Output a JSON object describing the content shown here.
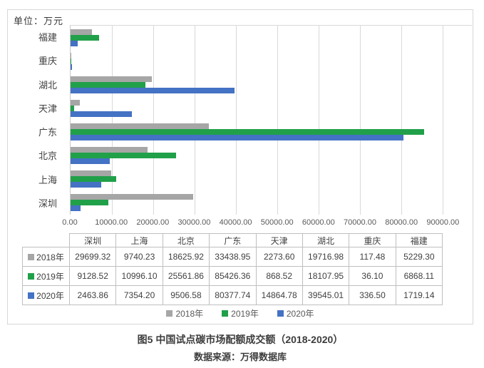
{
  "unit_label": "单位：万元",
  "chart_data": {
    "type": "bar",
    "orientation": "horizontal",
    "categories": [
      "深圳",
      "上海",
      "北京",
      "广东",
      "天津",
      "湖北",
      "重庆",
      "福建"
    ],
    "category_axis_top_to_bottom": [
      "福建",
      "重庆",
      "湖北",
      "天津",
      "广东",
      "北京",
      "上海",
      "深圳"
    ],
    "series": [
      {
        "name": "2018年",
        "color": "#A6A6A6",
        "values": [
          29699.32,
          9740.23,
          18625.92,
          33438.95,
          2273.6,
          19716.98,
          117.48,
          5229.3
        ]
      },
      {
        "name": "2019年",
        "color": "#21A04A",
        "values": [
          9128.52,
          10996.1,
          25561.86,
          85426.36,
          868.52,
          18107.95,
          36.1,
          6868.11
        ]
      },
      {
        "name": "2020年",
        "color": "#4472C4",
        "values": [
          2463.86,
          7354.2,
          9506.58,
          80377.74,
          14864.78,
          39545.01,
          336.5,
          1719.14
        ]
      }
    ],
    "xlim": [
      0,
      97000
    ],
    "xticks": [
      0,
      10000,
      20000,
      30000,
      40000,
      50000,
      60000,
      70000,
      80000,
      90000
    ],
    "xtick_labels": [
      "0.00",
      "10000.00",
      "20000.00",
      "30000.00",
      "40000.00",
      "50000.00",
      "60000.00",
      "70000.00",
      "80000.00",
      "90000.00"
    ],
    "grid": true,
    "legend_position": "bottom",
    "value_decimals": 2,
    "title": "图5 中国试点碳市场配额成交额（2018-2020）",
    "ylabel": "",
    "xlabel": ""
  },
  "table": {
    "columns": [
      "深圳",
      "上海",
      "北京",
      "广东",
      "天津",
      "湖北",
      "重庆",
      "福建"
    ],
    "row_labels": [
      "2018年",
      "2019年",
      "2020年"
    ]
  },
  "caption": {
    "title": "图5 中国试点碳市场配额成交额（2018-2020）",
    "source": "数据来源：万得数据库"
  },
  "colors": {
    "series_2018": "#A6A6A6",
    "series_2019": "#21A04A",
    "series_2020": "#4472C4",
    "gridline": "#D9D9D9",
    "panel_border": "#D7D7D7",
    "axis_text": "#595959",
    "body_text": "#404040"
  }
}
